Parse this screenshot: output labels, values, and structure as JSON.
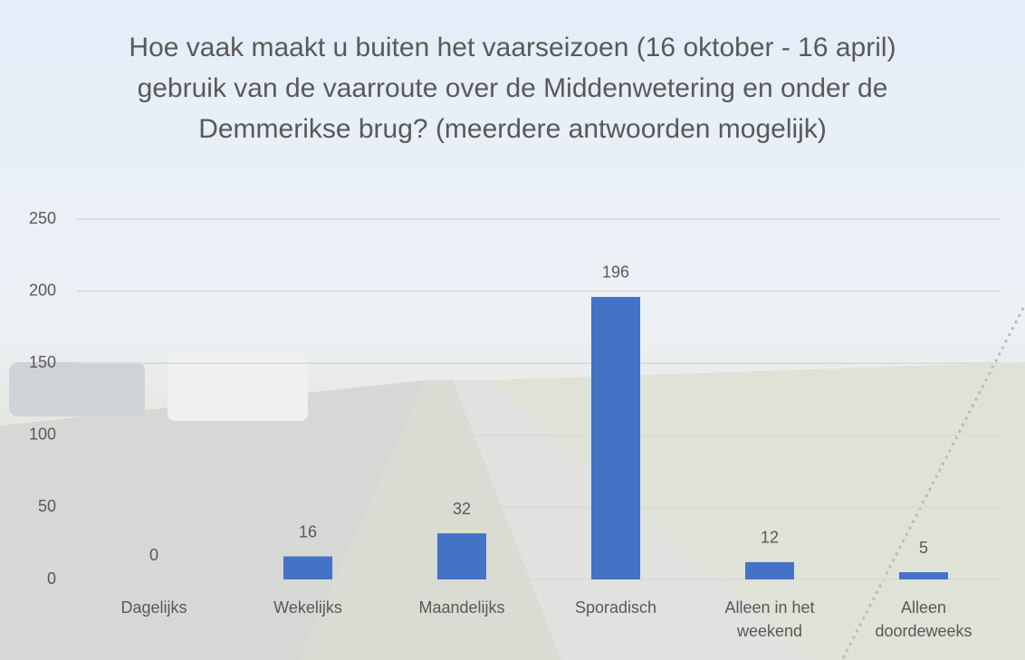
{
  "chart_data": {
    "type": "bar",
    "title": "Hoe vaak maakt u buiten het vaarseizoen (16 oktober - 16 april) gebruik van de vaarroute over de Middenwetering en onder de Demmerikse brug? (meerdere antwoorden mogelijk)",
    "categories": [
      "Dagelijks",
      "Wekelijks",
      "Maandelijks",
      "Sporadisch",
      "Alleen in het weekend",
      "Alleen doordeweeks"
    ],
    "values": [
      0,
      16,
      32,
      196,
      12,
      5
    ],
    "color": "#4472c4",
    "ylim": [
      0,
      250
    ],
    "yticks": [
      0,
      50,
      100,
      150,
      200,
      250
    ],
    "grid": true
  }
}
